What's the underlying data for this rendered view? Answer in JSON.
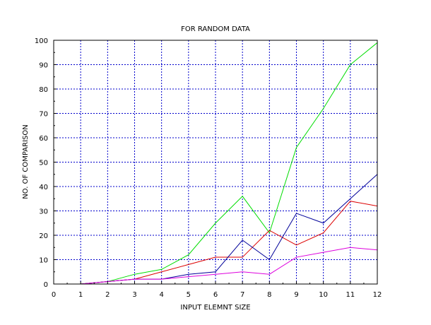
{
  "chart_data": {
    "type": "line",
    "title": "FOR RANDOM DATA",
    "xlabel": "INPUT ELEMNT SIZE",
    "ylabel": "NO. OF COMPARISON",
    "xlim": [
      0,
      12
    ],
    "ylim": [
      0,
      100
    ],
    "xticks": [
      0,
      1,
      2,
      3,
      4,
      5,
      6,
      7,
      8,
      9,
      10,
      11,
      12
    ],
    "yticks": [
      0,
      10,
      20,
      30,
      40,
      50,
      60,
      70,
      80,
      90,
      100
    ],
    "grid": true,
    "grid_color": "#0000cc",
    "x": [
      1,
      2,
      3,
      4,
      5,
      6,
      7,
      8,
      9,
      10,
      11,
      12
    ],
    "series": [
      {
        "color": "#00dd00",
        "values": [
          0,
          1,
          4,
          6,
          12,
          25,
          36,
          21,
          56,
          72,
          90,
          99
        ]
      },
      {
        "color": "#dd0000",
        "values": [
          0,
          1,
          2,
          5,
          8,
          11,
          11,
          22,
          16,
          21,
          34,
          32
        ]
      },
      {
        "color": "#000099",
        "values": [
          0,
          1,
          2,
          2,
          4,
          5,
          18,
          10,
          29,
          25,
          35,
          45
        ]
      },
      {
        "color": "#dd00dd",
        "values": [
          0,
          1,
          2,
          2,
          3,
          4,
          5,
          4,
          11,
          13,
          15,
          14
        ]
      }
    ]
  }
}
